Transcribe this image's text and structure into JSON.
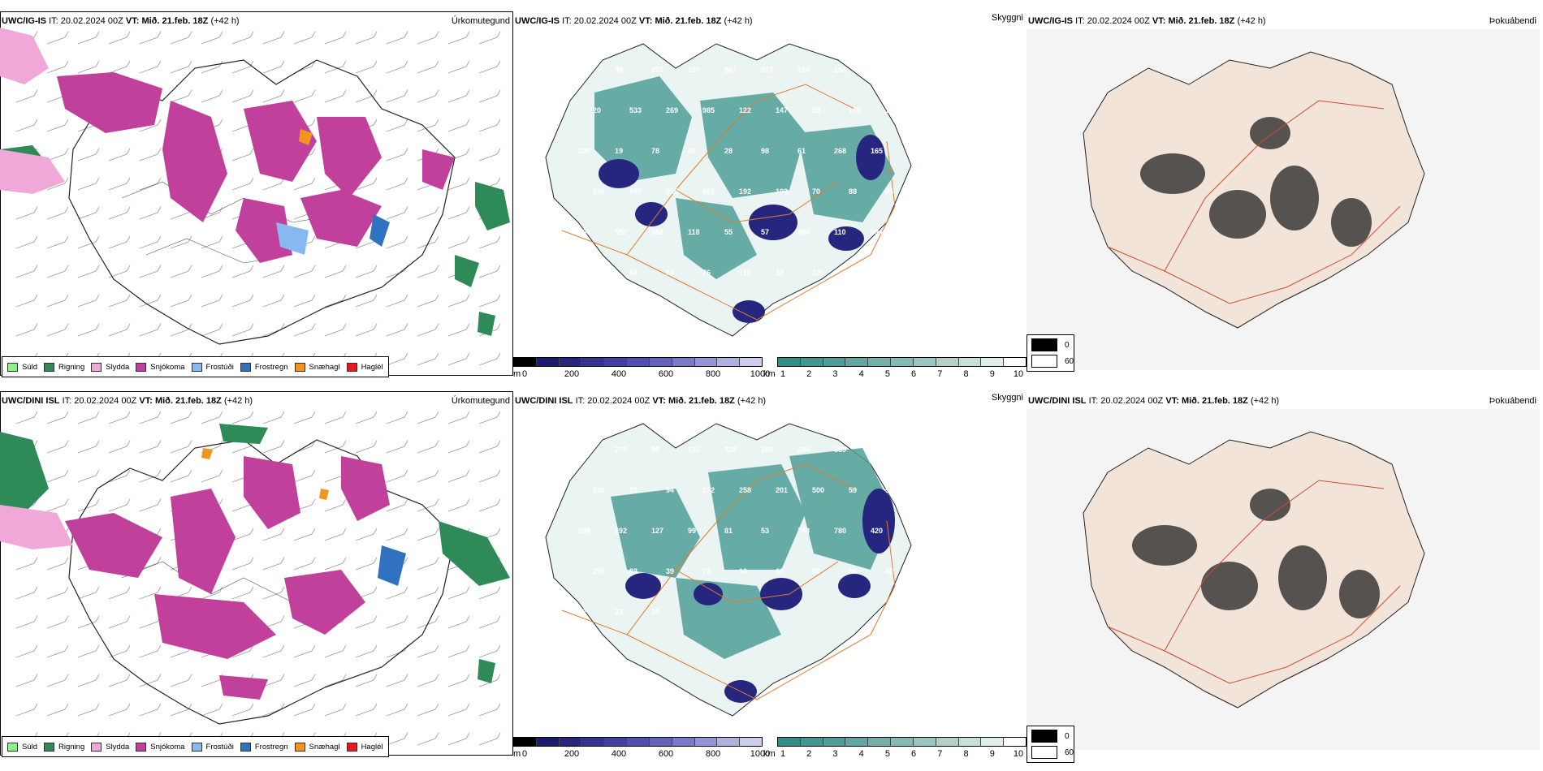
{
  "rows": [
    {
      "it_label": "IT:",
      "it_value": "20.02.2024 00Z",
      "vt_label": "VT:",
      "vt_value": "Mið. 21.feb. 18Z",
      "lead": "(+42 h)",
      "panels": [
        {
          "id": "precip-type",
          "model": "UWC/IG-IS",
          "field": "Úrkomutegund"
        },
        {
          "id": "cloud-base",
          "model": "UWC/IG-IS",
          "field": ""
        },
        {
          "id": "cloud-cover",
          "model": "UWC/IG-IS",
          "field": "Þokuábendi",
          "top_right_extra": ""
        }
      ],
      "middle_right_label": "Skyggni"
    },
    {
      "it_label": "IT:",
      "it_value": "20.02.2024 00Z",
      "vt_label": "VT:",
      "vt_value": "Mið. 21.feb. 18Z",
      "lead": "(+42 h)",
      "panels": [
        {
          "id": "precip-type",
          "model": "UWC/DINI ISL",
          "field": "Úrkomutegund"
        },
        {
          "id": "cloud-base",
          "model": "UWC/DINI ISL",
          "field": ""
        },
        {
          "id": "cloud-cover",
          "model": "UWC/DINI ISL",
          "field": "Þokuábendi"
        }
      ],
      "middle_right_label": "Skyggni"
    }
  ],
  "precip_legend": [
    {
      "label": "Súld",
      "color": "#90ee90"
    },
    {
      "label": "Rigning",
      "color": "#2e8b57"
    },
    {
      "label": "Slydda",
      "color": "#f0a8d8"
    },
    {
      "label": "Snjókoma",
      "color": "#c0409c"
    },
    {
      "label": "Frostúði",
      "color": "#87b8f0"
    },
    {
      "label": "Frostregn",
      "color": "#2f72c0"
    },
    {
      "label": "Snæhagl",
      "color": "#f0961e"
    },
    {
      "label": "Haglél",
      "color": "#e41a1c"
    }
  ],
  "cloud_base_scale": {
    "unit": "m",
    "ticks": [
      "0",
      "200",
      "400",
      "600",
      "800",
      "1000"
    ],
    "colors": [
      "#000000",
      "#1a1a6e",
      "#26267f",
      "#333390",
      "#4040a0",
      "#5050ae",
      "#6464bc",
      "#7a7ac8",
      "#9494d6",
      "#b0b0e2",
      "#ceceee"
    ]
  },
  "visibility_scale": {
    "unit": "km",
    "ticks": [
      "1",
      "2",
      "3",
      "4",
      "5",
      "6",
      "7",
      "8",
      "9",
      "10"
    ],
    "colors": [
      "#2f8f88",
      "#3f978f",
      "#4f9f98",
      "#60a8a1",
      "#72b1aa",
      "#85bbb5",
      "#99c6c0",
      "#afd2cd",
      "#c6dfdb",
      "#dfeeec",
      "#ffffff"
    ]
  },
  "fog_legend": [
    {
      "label": "0",
      "color": "#000000"
    },
    {
      "label": "60",
      "color": "#ffffff"
    }
  ],
  "map_numbers": {
    "row1": [
      "119",
      "95",
      "273",
      "287",
      "567",
      "273",
      "270",
      "198",
      "246",
      "20",
      "533",
      "269",
      "985",
      "122",
      "147",
      "58",
      "169",
      "110",
      "200",
      "19",
      "78",
      "40",
      "28",
      "98",
      "61",
      "268",
      "165",
      "136",
      "987",
      "956",
      "925",
      "192",
      "103",
      "70",
      "88",
      "85",
      "566",
      "552",
      "362",
      "118",
      "55",
      "57",
      "400",
      "110",
      "894",
      "350",
      "84",
      "50",
      "76",
      "110",
      "13",
      "126",
      "68"
    ],
    "row2": [
      "103",
      "270",
      "98",
      "131",
      "328",
      "100",
      "284",
      "689",
      "173",
      "230",
      "29",
      "94",
      "272",
      "258",
      "201",
      "500",
      "59",
      "56",
      "209",
      "292",
      "127",
      "99",
      "81",
      "53",
      "748",
      "780",
      "420",
      "299",
      "83",
      "39",
      "78",
      "10",
      "68",
      "82",
      "56",
      "42",
      "92",
      "23",
      "30"
    ]
  }
}
